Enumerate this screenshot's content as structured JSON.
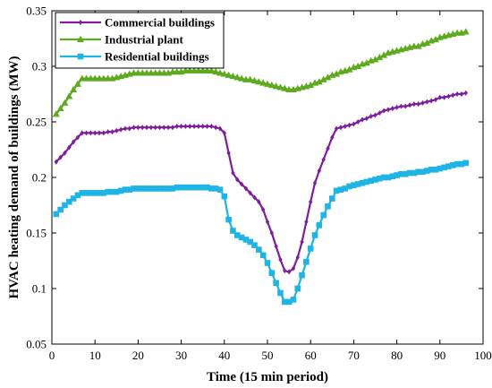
{
  "chart_data": {
    "type": "line",
    "title": "",
    "xlabel": "Time (15 min period)",
    "ylabel": "HVAC heating demand of buildings (MW)",
    "xlim": [
      0,
      100
    ],
    "ylim": [
      0.05,
      0.35
    ],
    "xticks": [
      0,
      10,
      20,
      30,
      40,
      50,
      60,
      70,
      80,
      90,
      100
    ],
    "yticks": [
      0.05,
      0.1,
      0.15,
      0.2,
      0.25,
      0.3,
      0.35
    ],
    "xtick_labels": [
      "0",
      "10",
      "20",
      "30",
      "40",
      "50",
      "60",
      "70",
      "80",
      "90",
      "100"
    ],
    "ytick_labels": [
      "0.05",
      "0.1",
      "0.15",
      "0.2",
      "0.25",
      "0.3",
      "0.35"
    ],
    "grid": false,
    "legend_position": "top-left",
    "x": [
      1,
      2,
      3,
      4,
      5,
      6,
      7,
      8,
      9,
      10,
      11,
      12,
      13,
      14,
      15,
      16,
      17,
      18,
      19,
      20,
      21,
      22,
      23,
      24,
      25,
      26,
      27,
      28,
      29,
      30,
      31,
      32,
      33,
      34,
      35,
      36,
      37,
      38,
      39,
      40,
      41,
      42,
      43,
      44,
      45,
      46,
      47,
      48,
      49,
      50,
      51,
      52,
      53,
      54,
      55,
      56,
      57,
      58,
      59,
      60,
      61,
      62,
      63,
      64,
      65,
      66,
      67,
      68,
      69,
      70,
      71,
      72,
      73,
      74,
      75,
      76,
      77,
      78,
      79,
      80,
      81,
      82,
      83,
      84,
      85,
      86,
      87,
      88,
      89,
      90,
      91,
      92,
      93,
      94,
      95,
      96
    ],
    "series": [
      {
        "name": "Commercial buildings",
        "color": "#7E1E9C",
        "marker": "diamond",
        "values": [
          0.214,
          0.218,
          0.222,
          0.227,
          0.232,
          0.236,
          0.24,
          0.24,
          0.24,
          0.24,
          0.24,
          0.24,
          0.241,
          0.241,
          0.242,
          0.243,
          0.244,
          0.244,
          0.245,
          0.245,
          0.245,
          0.245,
          0.245,
          0.245,
          0.245,
          0.245,
          0.245,
          0.245,
          0.246,
          0.246,
          0.246,
          0.246,
          0.246,
          0.246,
          0.246,
          0.246,
          0.246,
          0.245,
          0.244,
          0.24,
          0.222,
          0.204,
          0.198,
          0.194,
          0.19,
          0.186,
          0.182,
          0.178,
          0.171,
          0.16,
          0.15,
          0.138,
          0.126,
          0.116,
          0.115,
          0.118,
          0.128,
          0.142,
          0.16,
          0.178,
          0.195,
          0.206,
          0.216,
          0.226,
          0.236,
          0.244,
          0.245,
          0.246,
          0.247,
          0.248,
          0.25,
          0.252,
          0.253,
          0.255,
          0.256,
          0.258,
          0.26,
          0.261,
          0.262,
          0.263,
          0.264,
          0.264,
          0.265,
          0.266,
          0.266,
          0.267,
          0.268,
          0.269,
          0.27,
          0.272,
          0.272,
          0.273,
          0.274,
          0.275,
          0.275,
          0.276
        ]
      },
      {
        "name": "Industrial plant",
        "color": "#5DAA1E",
        "marker": "triangle",
        "values": [
          0.257,
          0.262,
          0.267,
          0.273,
          0.279,
          0.284,
          0.289,
          0.289,
          0.289,
          0.289,
          0.289,
          0.289,
          0.289,
          0.289,
          0.29,
          0.291,
          0.292,
          0.293,
          0.294,
          0.294,
          0.294,
          0.294,
          0.294,
          0.294,
          0.294,
          0.294,
          0.294,
          0.295,
          0.295,
          0.295,
          0.296,
          0.296,
          0.296,
          0.296,
          0.296,
          0.296,
          0.296,
          0.295,
          0.294,
          0.293,
          0.292,
          0.291,
          0.29,
          0.289,
          0.288,
          0.288,
          0.287,
          0.286,
          0.285,
          0.284,
          0.283,
          0.282,
          0.281,
          0.28,
          0.279,
          0.279,
          0.28,
          0.281,
          0.282,
          0.283,
          0.285,
          0.286,
          0.288,
          0.29,
          0.292,
          0.293,
          0.295,
          0.296,
          0.297,
          0.299,
          0.3,
          0.302,
          0.303,
          0.305,
          0.306,
          0.308,
          0.31,
          0.312,
          0.313,
          0.314,
          0.315,
          0.316,
          0.317,
          0.318,
          0.318,
          0.32,
          0.321,
          0.323,
          0.324,
          0.326,
          0.327,
          0.328,
          0.329,
          0.33,
          0.33,
          0.331
        ]
      },
      {
        "name": "Residential buildings",
        "color": "#1EB4E6",
        "marker": "square",
        "values": [
          0.167,
          0.171,
          0.175,
          0.178,
          0.181,
          0.184,
          0.186,
          0.186,
          0.186,
          0.186,
          0.186,
          0.186,
          0.187,
          0.187,
          0.187,
          0.188,
          0.189,
          0.189,
          0.19,
          0.19,
          0.19,
          0.19,
          0.19,
          0.19,
          0.19,
          0.19,
          0.19,
          0.19,
          0.191,
          0.191,
          0.191,
          0.191,
          0.191,
          0.191,
          0.191,
          0.191,
          0.19,
          0.19,
          0.189,
          0.183,
          0.162,
          0.152,
          0.148,
          0.146,
          0.144,
          0.142,
          0.139,
          0.135,
          0.13,
          0.123,
          0.114,
          0.105,
          0.096,
          0.088,
          0.088,
          0.09,
          0.1,
          0.112,
          0.124,
          0.136,
          0.148,
          0.157,
          0.166,
          0.174,
          0.181,
          0.188,
          0.189,
          0.19,
          0.192,
          0.193,
          0.194,
          0.195,
          0.196,
          0.197,
          0.198,
          0.199,
          0.2,
          0.2,
          0.201,
          0.202,
          0.203,
          0.203,
          0.204,
          0.204,
          0.205,
          0.205,
          0.206,
          0.207,
          0.207,
          0.208,
          0.209,
          0.21,
          0.211,
          0.212,
          0.212,
          0.213
        ]
      }
    ]
  }
}
